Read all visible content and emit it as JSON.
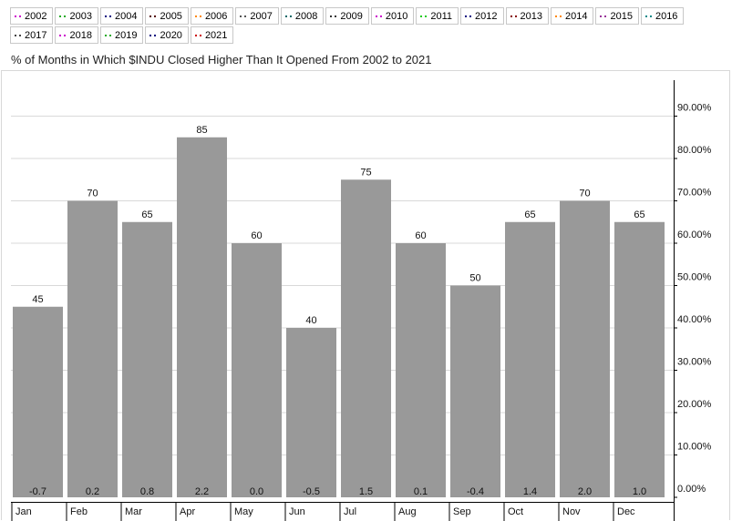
{
  "legend": {
    "items": [
      {
        "label": "2002",
        "color": "#cc00cc"
      },
      {
        "label": "2003",
        "color": "#22aa22"
      },
      {
        "label": "2004",
        "color": "#000080"
      },
      {
        "label": "2005",
        "color": "#550000"
      },
      {
        "label": "2006",
        "color": "#ff8800"
      },
      {
        "label": "2007",
        "color": "#555555"
      },
      {
        "label": "2008",
        "color": "#006666"
      },
      {
        "label": "2009",
        "color": "#333333"
      },
      {
        "label": "2010",
        "color": "#cc00cc"
      },
      {
        "label": "2011",
        "color": "#22cc22"
      },
      {
        "label": "2012",
        "color": "#000080"
      },
      {
        "label": "2013",
        "color": "#880000"
      },
      {
        "label": "2014",
        "color": "#ff8800"
      },
      {
        "label": "2015",
        "color": "#993399"
      },
      {
        "label": "2016",
        "color": "#008888"
      },
      {
        "label": "2017",
        "color": "#444444"
      },
      {
        "label": "2018",
        "color": "#cc00cc"
      },
      {
        "label": "2019",
        "color": "#22aa22"
      },
      {
        "label": "2020",
        "color": "#000080"
      },
      {
        "label": "2021",
        "color": "#cc0000"
      }
    ]
  },
  "chart_data": {
    "type": "bar",
    "title": "% of Months in Which $INDU Closed Higher Than It Opened From 2002 to 2021",
    "categories": [
      "Jan",
      "Feb",
      "Mar",
      "Apr",
      "May",
      "Jun",
      "Jul",
      "Aug",
      "Sep",
      "Oct",
      "Nov",
      "Dec"
    ],
    "values": [
      45,
      70,
      65,
      85,
      60,
      40,
      75,
      60,
      50,
      65,
      70,
      65
    ],
    "value_labels": [
      "45",
      "70",
      "65",
      "85",
      "60",
      "40",
      "75",
      "60",
      "50",
      "65",
      "70",
      "65"
    ],
    "bottom_labels": [
      "-0.7",
      "0.2",
      "0.8",
      "2.2",
      "0.0",
      "-0.5",
      "1.5",
      "0.1",
      "-0.4",
      "1.4",
      "2.0",
      "1.0"
    ],
    "ylim": [
      0,
      100
    ],
    "yticks": [
      0,
      10,
      20,
      30,
      40,
      50,
      60,
      70,
      80,
      90
    ],
    "ytick_labels": [
      "0.00%",
      "10.00%",
      "20.00%",
      "30.00%",
      "40.00%",
      "50.00%",
      "60.00%",
      "70.00%",
      "80.00%",
      "90.00%"
    ],
    "y_axis_side": "right",
    "grid": true,
    "bar_color": "#999999"
  }
}
